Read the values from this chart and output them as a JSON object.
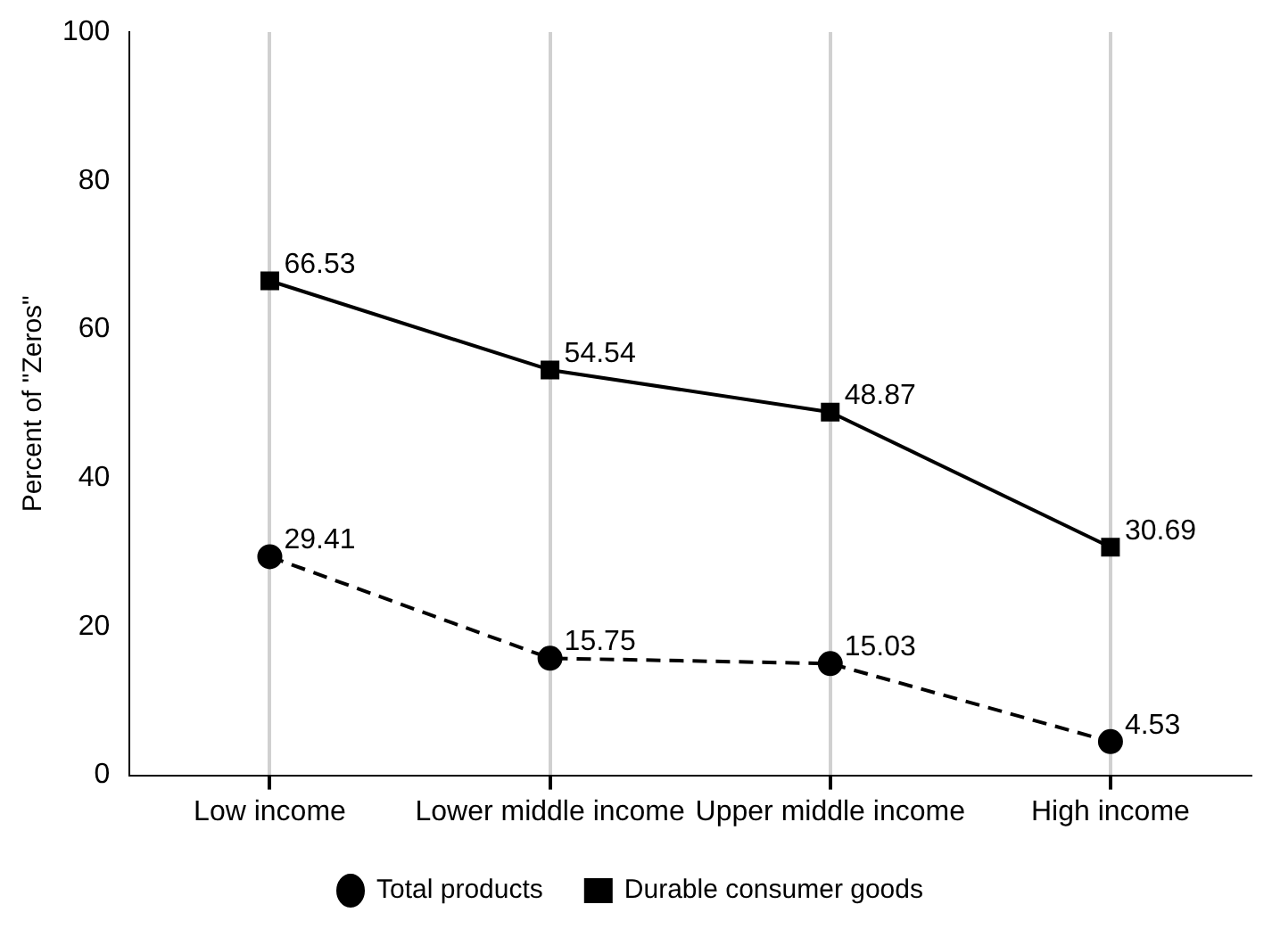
{
  "chart_data": {
    "type": "line",
    "ylabel": "Percent of \"Zeros\"",
    "categories": [
      "Low income",
      "Lower middle income",
      "Upper middle income",
      "High income"
    ],
    "series": [
      {
        "name": "Total products",
        "color": "#000000",
        "values": [
          29.41,
          15.75,
          15.03,
          4.53
        ],
        "marker": "circle",
        "line_style": "dashed"
      },
      {
        "name": "Durable consumer goods",
        "color": "#000000",
        "values": [
          66.53,
          54.54,
          48.87,
          30.69
        ],
        "marker": "square",
        "line_style": "solid"
      }
    ],
    "ylim": [
      0,
      100
    ],
    "yticks": [
      0,
      20,
      40,
      60,
      80,
      100
    ],
    "grid": "x",
    "legend": "bottom",
    "data_labels": true
  }
}
